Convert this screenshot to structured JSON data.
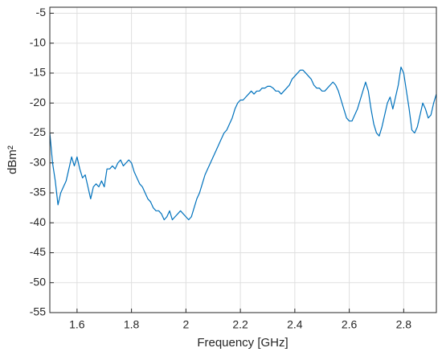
{
  "chart_data": {
    "type": "line",
    "xlabel": "Frequency [GHz]",
    "ylabel": "dBm²",
    "xlim": [
      1.5,
      2.92
    ],
    "ylim": [
      -55,
      -4
    ],
    "xticks": [
      1.6,
      1.8,
      2,
      2.2,
      2.4,
      2.6,
      2.8
    ],
    "yticks": [
      -5,
      -10,
      -15,
      -20,
      -25,
      -30,
      -35,
      -40,
      -45,
      -50,
      -55
    ],
    "grid": true,
    "series": [
      {
        "color": "#0072bd",
        "x": [
          1.5,
          1.51,
          1.52,
          1.53,
          1.54,
          1.55,
          1.56,
          1.57,
          1.58,
          1.59,
          1.6,
          1.61,
          1.62,
          1.63,
          1.64,
          1.65,
          1.66,
          1.67,
          1.68,
          1.69,
          1.7,
          1.71,
          1.72,
          1.73,
          1.74,
          1.75,
          1.76,
          1.77,
          1.78,
          1.79,
          1.8,
          1.81,
          1.82,
          1.83,
          1.84,
          1.85,
          1.86,
          1.87,
          1.88,
          1.89,
          1.9,
          1.91,
          1.92,
          1.93,
          1.94,
          1.95,
          1.96,
          1.97,
          1.98,
          1.99,
          2.0,
          2.01,
          2.02,
          2.03,
          2.04,
          2.05,
          2.06,
          2.07,
          2.08,
          2.09,
          2.1,
          2.11,
          2.12,
          2.13,
          2.14,
          2.15,
          2.16,
          2.17,
          2.18,
          2.19,
          2.2,
          2.21,
          2.22,
          2.23,
          2.24,
          2.25,
          2.26,
          2.27,
          2.28,
          2.29,
          2.3,
          2.31,
          2.32,
          2.33,
          2.34,
          2.35,
          2.36,
          2.37,
          2.38,
          2.39,
          2.4,
          2.41,
          2.42,
          2.43,
          2.44,
          2.45,
          2.46,
          2.47,
          2.48,
          2.49,
          2.5,
          2.51,
          2.52,
          2.53,
          2.54,
          2.55,
          2.56,
          2.57,
          2.58,
          2.59,
          2.6,
          2.61,
          2.62,
          2.63,
          2.64,
          2.65,
          2.66,
          2.67,
          2.68,
          2.69,
          2.7,
          2.71,
          2.72,
          2.73,
          2.74,
          2.75,
          2.76,
          2.77,
          2.78,
          2.79,
          2.8,
          2.81,
          2.82,
          2.83,
          2.84,
          2.85,
          2.86,
          2.87,
          2.88,
          2.89,
          2.9,
          2.91,
          2.92
        ],
        "values": [
          -25,
          -30,
          -33,
          -37,
          -35,
          -34,
          -33,
          -31,
          -29,
          -30.5,
          -29,
          -31,
          -32.5,
          -32,
          -34,
          -36,
          -34,
          -33.5,
          -34,
          -33,
          -34,
          -31,
          -31,
          -30.5,
          -31,
          -30,
          -29.5,
          -30.5,
          -30,
          -29.5,
          -30,
          -31.5,
          -32.5,
          -33.5,
          -34,
          -35,
          -36,
          -36.5,
          -37.5,
          -38,
          -38,
          -38.5,
          -39.5,
          -39,
          -38,
          -39.5,
          -39,
          -38.5,
          -38,
          -38.5,
          -39,
          -39.5,
          -39,
          -37.5,
          -36,
          -35,
          -33.5,
          -32,
          -31,
          -30,
          -29,
          -28,
          -27,
          -26,
          -25,
          -24.5,
          -23.5,
          -22.5,
          -21,
          -20,
          -19.5,
          -19.5,
          -19,
          -18.5,
          -18,
          -18.5,
          -18,
          -18,
          -17.5,
          -17.5,
          -17.2,
          -17.2,
          -17.5,
          -18,
          -18,
          -18.5,
          -18,
          -17.5,
          -17,
          -16,
          -15.5,
          -15,
          -14.5,
          -14.5,
          -15,
          -15.5,
          -16,
          -17,
          -17.5,
          -17.5,
          -18,
          -18,
          -17.5,
          -17,
          -16.5,
          -17,
          -18,
          -19.5,
          -21,
          -22.5,
          -23,
          -23,
          -22,
          -21,
          -19.5,
          -18,
          -16.5,
          -18,
          -21,
          -23.5,
          -25,
          -25.5,
          -24,
          -22,
          -20,
          -19,
          -21,
          -19,
          -17,
          -14,
          -15,
          -18,
          -21,
          -24.5,
          -25,
          -24,
          -22,
          -20,
          -21,
          -22.5,
          -22,
          -20,
          -18.5
        ]
      }
    ]
  }
}
